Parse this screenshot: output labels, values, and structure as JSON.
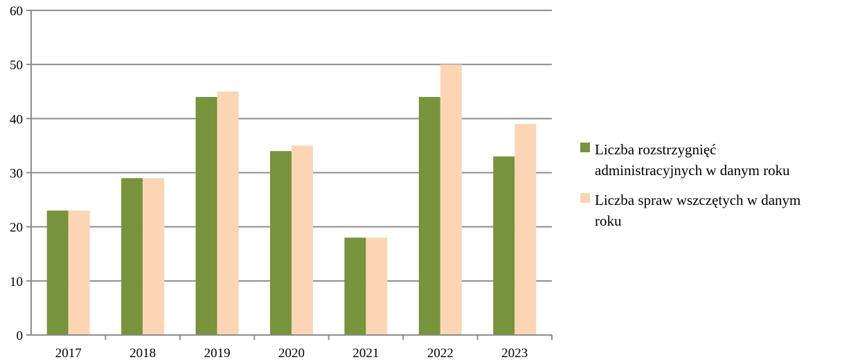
{
  "chart_data": {
    "type": "bar",
    "categories": [
      "2017",
      "2018",
      "2019",
      "2020",
      "2021",
      "2022",
      "2023"
    ],
    "series": [
      {
        "name": "Liczba rozstrzygnięć administracyjnych w danym roku",
        "legend_lines": [
          "Liczba rozstrzygnięć",
          "administracyjnych w danym roku"
        ],
        "color": "#77933c",
        "values": [
          23,
          29,
          44,
          34,
          18,
          44,
          33
        ]
      },
      {
        "name": "Liczba spraw wszczętych w danym roku",
        "legend_lines": [
          "Liczba spraw wszczętych w danym",
          "roku"
        ],
        "color": "#fcd5b5",
        "values": [
          23,
          29,
          45,
          35,
          18,
          50,
          39
        ]
      }
    ],
    "ylim": [
      0,
      60
    ],
    "yticks": [
      0,
      10,
      20,
      30,
      40,
      50,
      60
    ],
    "grid": true,
    "legend": "right",
    "title": "",
    "xlabel": "",
    "ylabel": ""
  }
}
